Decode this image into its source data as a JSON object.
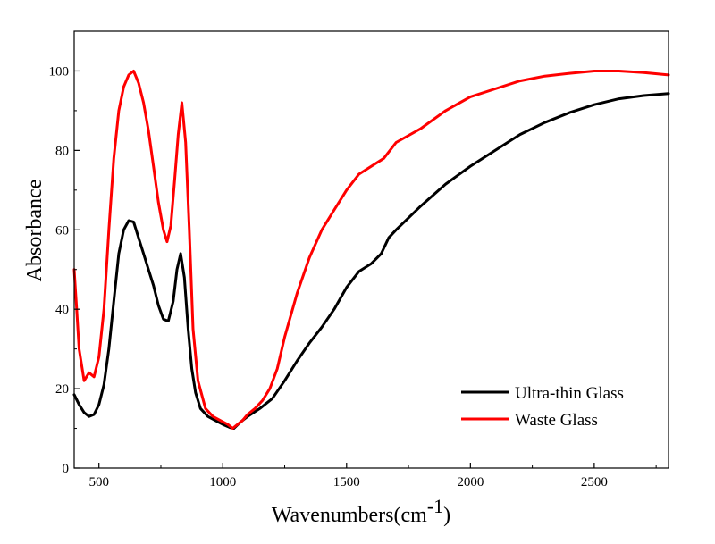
{
  "chart_data": {
    "type": "line",
    "xlabel": "Wavenumbers(cm",
    "xlabel_superscript": "-1",
    "xlabel_close": ")",
    "ylabel": "Absorbance",
    "xlim": [
      400,
      2800
    ],
    "ylim": [
      0,
      110
    ],
    "x_ticks": [
      500,
      1000,
      1500,
      2000,
      2500
    ],
    "y_ticks": [
      0,
      20,
      40,
      60,
      80,
      100
    ],
    "grid": false,
    "legend_position": "lower-right",
    "series": [
      {
        "name": "Ultra-thin Glass",
        "color": "#000000",
        "points": [
          [
            400,
            18.5
          ],
          [
            420,
            16
          ],
          [
            440,
            14
          ],
          [
            460,
            13
          ],
          [
            480,
            13.5
          ],
          [
            500,
            16
          ],
          [
            520,
            21
          ],
          [
            540,
            30
          ],
          [
            560,
            42
          ],
          [
            580,
            54
          ],
          [
            600,
            60
          ],
          [
            620,
            62.3
          ],
          [
            640,
            62
          ],
          [
            660,
            58
          ],
          [
            680,
            54
          ],
          [
            700,
            50
          ],
          [
            720,
            46
          ],
          [
            740,
            41
          ],
          [
            760,
            37.5
          ],
          [
            780,
            37
          ],
          [
            800,
            42
          ],
          [
            815,
            50
          ],
          [
            830,
            54
          ],
          [
            845,
            48
          ],
          [
            860,
            35
          ],
          [
            875,
            25
          ],
          [
            890,
            19
          ],
          [
            910,
            15
          ],
          [
            940,
            13
          ],
          [
            970,
            12
          ],
          [
            1000,
            11
          ],
          [
            1030,
            10.2
          ],
          [
            1045,
            10
          ],
          [
            1070,
            11.5
          ],
          [
            1100,
            13
          ],
          [
            1150,
            15
          ],
          [
            1200,
            17.5
          ],
          [
            1250,
            22
          ],
          [
            1300,
            27
          ],
          [
            1350,
            31.5
          ],
          [
            1400,
            35.5
          ],
          [
            1450,
            40
          ],
          [
            1500,
            45.5
          ],
          [
            1550,
            49.5
          ],
          [
            1600,
            51.5
          ],
          [
            1640,
            54
          ],
          [
            1670,
            58
          ],
          [
            1700,
            60
          ],
          [
            1800,
            66
          ],
          [
            1900,
            71.5
          ],
          [
            2000,
            76
          ],
          [
            2100,
            80
          ],
          [
            2200,
            84
          ],
          [
            2300,
            87
          ],
          [
            2400,
            89.5
          ],
          [
            2500,
            91.5
          ],
          [
            2600,
            93
          ],
          [
            2700,
            93.8
          ],
          [
            2800,
            94.3
          ]
        ]
      },
      {
        "name": "Waste Glass",
        "color": "#ff0000",
        "points": [
          [
            400,
            50
          ],
          [
            410,
            40
          ],
          [
            420,
            30
          ],
          [
            440,
            22
          ],
          [
            460,
            24
          ],
          [
            480,
            23
          ],
          [
            500,
            28
          ],
          [
            520,
            40
          ],
          [
            540,
            60
          ],
          [
            560,
            78
          ],
          [
            580,
            90
          ],
          [
            600,
            96
          ],
          [
            620,
            99
          ],
          [
            640,
            100
          ],
          [
            660,
            97
          ],
          [
            680,
            92
          ],
          [
            700,
            85
          ],
          [
            720,
            76
          ],
          [
            740,
            67
          ],
          [
            760,
            60
          ],
          [
            775,
            57
          ],
          [
            790,
            61
          ],
          [
            805,
            72
          ],
          [
            820,
            84
          ],
          [
            835,
            92
          ],
          [
            850,
            82
          ],
          [
            865,
            60
          ],
          [
            880,
            35
          ],
          [
            900,
            22
          ],
          [
            930,
            15
          ],
          [
            960,
            13
          ],
          [
            990,
            12
          ],
          [
            1020,
            11
          ],
          [
            1040,
            10
          ],
          [
            1060,
            11
          ],
          [
            1080,
            12
          ],
          [
            1100,
            13.5
          ],
          [
            1130,
            15
          ],
          [
            1160,
            17
          ],
          [
            1190,
            20
          ],
          [
            1220,
            25
          ],
          [
            1250,
            33
          ],
          [
            1300,
            44
          ],
          [
            1350,
            53
          ],
          [
            1400,
            60
          ],
          [
            1450,
            65
          ],
          [
            1500,
            70
          ],
          [
            1550,
            74
          ],
          [
            1600,
            76
          ],
          [
            1650,
            78
          ],
          [
            1700,
            82
          ],
          [
            1800,
            85.5
          ],
          [
            1900,
            90
          ],
          [
            2000,
            93.5
          ],
          [
            2100,
            95.5
          ],
          [
            2200,
            97.5
          ],
          [
            2300,
            98.7
          ],
          [
            2400,
            99.4
          ],
          [
            2500,
            100
          ],
          [
            2600,
            100
          ],
          [
            2700,
            99.6
          ],
          [
            2800,
            99
          ]
        ]
      }
    ]
  }
}
